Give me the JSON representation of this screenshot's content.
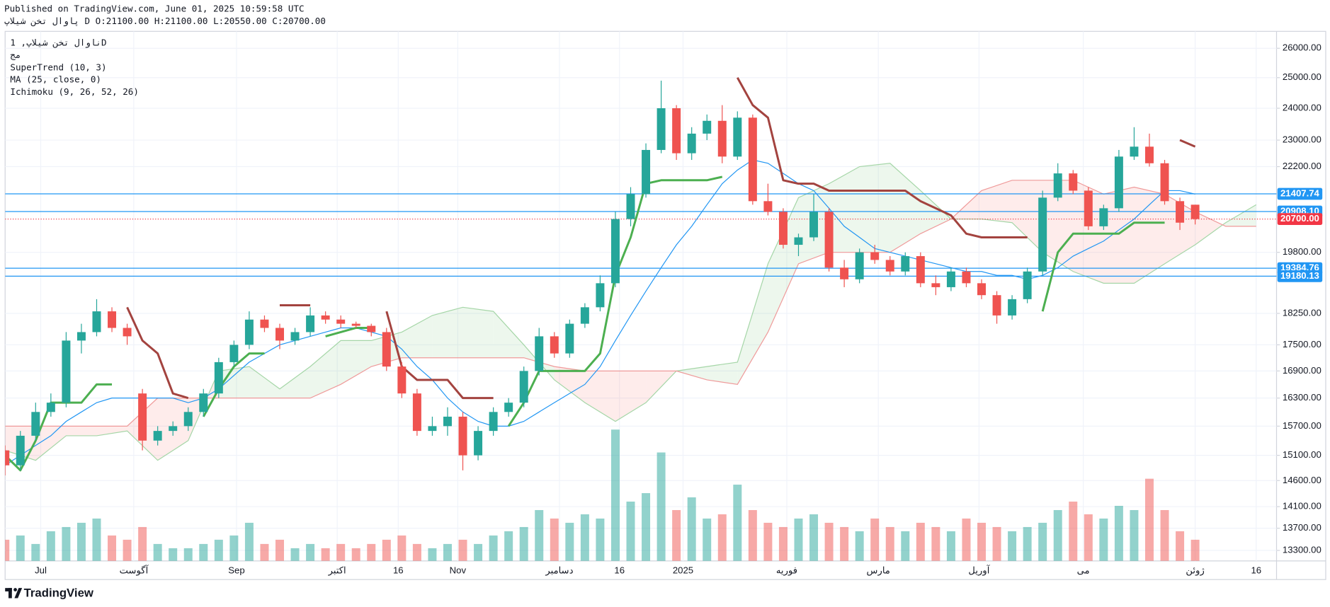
{
  "header": {
    "published": "Published on TradingView.com, June 01, 2025 10:59:58 UTC",
    "symbol": "پاوال تخن شیلاپ",
    "interval": "D",
    "ohlc": [
      "O:21100.00",
      "H:21100.00",
      "L:20550.00",
      "C:20700.00"
    ]
  },
  "footer": {
    "brand": "TradingView"
  },
  "chart_data": {
    "type": "candlestick",
    "legend": [
      "ناوال تخن شیلاپ, 1D",
      "مج",
      "SuperTrend (10, 3)",
      "MA (25, close, 0)",
      "Ichimoku (9, 26, 52, 26)"
    ],
    "log_scale": true,
    "grid": true,
    "xlim": [
      0,
      250
    ],
    "ylim": [
      13115,
      26594
    ],
    "yticks": [
      {
        "value": 26000,
        "label": "26000.00"
      },
      {
        "value": 25000,
        "label": "25000.00"
      },
      {
        "value": 24000,
        "label": "24000.00"
      },
      {
        "value": 23000,
        "label": "23000.00"
      },
      {
        "value": 22200,
        "label": "22200.00"
      },
      {
        "value": 19800,
        "label": "19800.00"
      },
      {
        "value": 18250,
        "label": "18250.00"
      },
      {
        "value": 17500,
        "label": "17500.00"
      },
      {
        "value": 16900,
        "label": "16900.00"
      },
      {
        "value": 16300,
        "label": "16300.00"
      },
      {
        "value": 15700,
        "label": "15700.00"
      },
      {
        "value": 15100,
        "label": "15100.00"
      },
      {
        "value": 14600,
        "label": "14600.00"
      },
      {
        "value": 14100,
        "label": "14100.00"
      },
      {
        "value": 13700,
        "label": "13700.00"
      },
      {
        "value": 13300,
        "label": "13300.00"
      }
    ],
    "xticks": [
      {
        "value": 7,
        "label": "Jul"
      },
      {
        "value": 25.3,
        "label": "آگوست"
      },
      {
        "value": 45.5,
        "label": "Sep"
      },
      {
        "value": 65.3,
        "label": "اکتبر"
      },
      {
        "value": 77.3,
        "label": "16"
      },
      {
        "value": 89,
        "label": "Nov"
      },
      {
        "value": 109,
        "label": "دسامبر"
      },
      {
        "value": 120.8,
        "label": "16"
      },
      {
        "value": 133.3,
        "label": "2025"
      },
      {
        "value": 153.7,
        "label": "فوریه"
      },
      {
        "value": 171.7,
        "label": "مارس"
      },
      {
        "value": 191.5,
        "label": "آوریل"
      },
      {
        "value": 212,
        "label": "می"
      },
      {
        "value": 234,
        "label": "ژوئن"
      },
      {
        "value": 246,
        "label": "16"
      }
    ],
    "up_color": "#26a69a",
    "down_color": "#ef5350",
    "x": [
      0,
      3,
      6,
      9,
      12,
      15,
      18,
      21,
      24,
      27,
      30,
      33,
      36,
      39,
      42,
      45,
      48,
      51,
      54,
      57,
      60,
      63,
      66,
      69,
      72,
      75,
      78,
      81,
      84,
      87,
      90,
      93,
      96,
      99,
      102,
      105,
      108,
      111,
      114,
      117,
      120,
      123,
      126,
      129,
      132,
      135,
      138,
      141,
      144,
      147,
      150,
      153,
      156,
      159,
      162,
      165,
      168,
      171,
      174,
      177,
      180,
      183,
      186,
      189,
      192,
      195,
      198,
      201,
      204,
      207,
      210,
      213,
      216,
      219,
      222,
      225,
      228,
      231,
      234
    ],
    "ohlc": [
      [
        15200,
        15300,
        14700,
        14900
      ],
      [
        14900,
        15600,
        14800,
        15500
      ],
      [
        15500,
        16200,
        15400,
        16000
      ],
      [
        16000,
        16400,
        15900,
        16200
      ],
      [
        16200,
        17800,
        16100,
        17600
      ],
      [
        17600,
        18000,
        17300,
        17800
      ],
      [
        17800,
        18600,
        17700,
        18300
      ],
      [
        18300,
        18400,
        17800,
        17900
      ],
      [
        17900,
        18000,
        17500,
        17700
      ],
      [
        16400,
        16500,
        15200,
        15400
      ],
      [
        15400,
        15700,
        15300,
        15600
      ],
      [
        15600,
        15800,
        15500,
        15700
      ],
      [
        15700,
        16100,
        15600,
        16000
      ],
      [
        16000,
        16500,
        15900,
        16400
      ],
      [
        16400,
        17200,
        16300,
        17100
      ],
      [
        17100,
        17600,
        17000,
        17500
      ],
      [
        17500,
        18300,
        17400,
        18100
      ],
      [
        18100,
        18200,
        17800,
        17900
      ],
      [
        17900,
        18000,
        17400,
        17600
      ],
      [
        17600,
        17900,
        17500,
        17800
      ],
      [
        17800,
        18400,
        17700,
        18200
      ],
      [
        18200,
        18300,
        18000,
        18100
      ],
      [
        18100,
        18200,
        17900,
        18000
      ],
      [
        18000,
        18050,
        17900,
        17950
      ],
      [
        17950,
        18000,
        17700,
        17800
      ],
      [
        17800,
        17900,
        16900,
        17000
      ],
      [
        17000,
        17100,
        16300,
        16400
      ],
      [
        16400,
        16500,
        15500,
        15600
      ],
      [
        15600,
        15900,
        15500,
        15700
      ],
      [
        15700,
        16100,
        15500,
        15900
      ],
      [
        15900,
        16000,
        14800,
        15100
      ],
      [
        15100,
        15700,
        15000,
        15600
      ],
      [
        15600,
        16100,
        15500,
        16000
      ],
      [
        16000,
        16300,
        15900,
        16200
      ],
      [
        16200,
        17000,
        16100,
        16900
      ],
      [
        16900,
        17900,
        16800,
        17700
      ],
      [
        17700,
        17800,
        17200,
        17300
      ],
      [
        17300,
        18100,
        17200,
        18000
      ],
      [
        18000,
        18500,
        17900,
        18400
      ],
      [
        18400,
        19200,
        18300,
        19000
      ],
      [
        19000,
        20900,
        18900,
        20700
      ],
      [
        20700,
        21600,
        20500,
        21400
      ],
      [
        21400,
        22900,
        21300,
        22700
      ],
      [
        22700,
        24900,
        22600,
        24000
      ],
      [
        24000,
        24100,
        22400,
        22600
      ],
      [
        22600,
        23400,
        22400,
        23200
      ],
      [
        23200,
        23800,
        23000,
        23600
      ],
      [
        23600,
        24100,
        22300,
        22500
      ],
      [
        22500,
        23900,
        22400,
        23700
      ],
      [
        23700,
        23800,
        21100,
        21200
      ],
      [
        21200,
        21700,
        20800,
        20900
      ],
      [
        20900,
        21000,
        19900,
        20000
      ],
      [
        20000,
        20300,
        19700,
        20200
      ],
      [
        20200,
        21400,
        20100,
        20900
      ],
      [
        20900,
        21000,
        19300,
        19400
      ],
      [
        19400,
        19600,
        18900,
        19100
      ],
      [
        19100,
        19900,
        19000,
        19800
      ],
      [
        19800,
        20000,
        19500,
        19600
      ],
      [
        19600,
        19700,
        19200,
        19300
      ],
      [
        19300,
        19800,
        19200,
        19700
      ],
      [
        19700,
        19800,
        18900,
        19000
      ],
      [
        19000,
        19200,
        18700,
        18900
      ],
      [
        18900,
        19400,
        18800,
        19300
      ],
      [
        19300,
        19400,
        18900,
        19000
      ],
      [
        19000,
        19100,
        18600,
        18700
      ],
      [
        18700,
        18800,
        18000,
        18200
      ],
      [
        18200,
        18700,
        18100,
        18600
      ],
      [
        18600,
        19400,
        18500,
        19300
      ],
      [
        19300,
        21500,
        19200,
        21300
      ],
      [
        21300,
        22300,
        21200,
        22000
      ],
      [
        22000,
        22100,
        21400,
        21500
      ],
      [
        21500,
        21600,
        20400,
        20500
      ],
      [
        20500,
        21100,
        20400,
        21000
      ],
      [
        21000,
        22700,
        20900,
        22500
      ],
      [
        22500,
        23400,
        22400,
        22800
      ],
      [
        22800,
        23200,
        22200,
        22300
      ],
      [
        22300,
        22400,
        21100,
        21200
      ],
      [
        21200,
        21300,
        20400,
        20600
      ],
      [
        21100,
        21100,
        20550,
        20700
      ]
    ],
    "volume": [
      25,
      30,
      20,
      35,
      40,
      45,
      50,
      30,
      25,
      40,
      20,
      15,
      15,
      20,
      25,
      30,
      45,
      20,
      25,
      15,
      20,
      15,
      20,
      15,
      20,
      25,
      30,
      20,
      15,
      20,
      25,
      20,
      30,
      35,
      40,
      60,
      50,
      45,
      55,
      50,
      155,
      70,
      80,
      128,
      60,
      75,
      50,
      55,
      90,
      60,
      45,
      40,
      50,
      55,
      45,
      40,
      35,
      50,
      40,
      35,
      45,
      40,
      35,
      50,
      45,
      40,
      35,
      40,
      45,
      60,
      70,
      55,
      50,
      65,
      60,
      97,
      60,
      35,
      25
    ],
    "ma": {
      "color": "#2196f3",
      "values": [
        14900,
        15100,
        15300,
        15500,
        15800,
        16000,
        16200,
        16300,
        16300,
        16300,
        16300,
        16300,
        16200,
        16300,
        16500,
        16800,
        17100,
        17300,
        17500,
        17600,
        17700,
        17800,
        17900,
        17900,
        17800,
        17700,
        17400,
        17000,
        16700,
        16300,
        16000,
        15800,
        15700,
        15700,
        15800,
        16000,
        16200,
        16400,
        16600,
        17000,
        17600,
        18200,
        18800,
        19400,
        20000,
        20500,
        21100,
        21700,
        22100,
        22400,
        22300,
        22000,
        21700,
        21500,
        21000,
        20500,
        20200,
        19900,
        19800,
        19700,
        19600,
        19500,
        19400,
        19300,
        19300,
        19200,
        19200,
        19100,
        19200,
        19400,
        19700,
        19900,
        20100,
        20400,
        20700,
        21100,
        21500,
        21500,
        21400
      ]
    },
    "supertrend": {
      "up": {
        "color": "#4caf50",
        "values": [
          15100,
          14800,
          15400,
          16200,
          16200,
          16200,
          16600,
          16600,
          null,
          null,
          null,
          null,
          null,
          15900,
          16500,
          17000,
          17300,
          17300,
          null,
          null,
          null,
          17700,
          17800,
          17900,
          17900,
          null,
          null,
          null,
          null,
          null,
          null,
          null,
          null,
          15700,
          16200,
          16900,
          16900,
          16900,
          16900,
          17300,
          19200,
          20200,
          21700,
          21800,
          21800,
          21800,
          21800,
          21900,
          null,
          null,
          null,
          null,
          null,
          null,
          null,
          null,
          null,
          null,
          null,
          null,
          null,
          null,
          null,
          null,
          null,
          null,
          null,
          null,
          18300,
          19800,
          20300,
          20300,
          20300,
          20300,
          20600,
          20600,
          20600,
          null,
          null
        ]
      },
      "down": {
        "color": "#a3433f",
        "values": [
          null,
          null,
          null,
          null,
          null,
          null,
          null,
          null,
          18400,
          17600,
          17300,
          16400,
          16300,
          null,
          null,
          null,
          null,
          null,
          18450,
          18450,
          18450,
          null,
          null,
          null,
          null,
          18300,
          17000,
          16700,
          16700,
          16700,
          16300,
          16300,
          16300,
          null,
          null,
          null,
          null,
          null,
          null,
          null,
          null,
          null,
          null,
          null,
          null,
          null,
          null,
          null,
          25000,
          24100,
          23700,
          21800,
          21700,
          21700,
          21500,
          21500,
          21500,
          21500,
          21500,
          21500,
          21200,
          21000,
          20800,
          20300,
          20200,
          20200,
          20200,
          20200,
          null,
          null,
          null,
          null,
          null,
          null,
          null,
          null,
          null,
          23000,
          22800
        ]
      }
    },
    "ichimoku": {
      "a_color": "#a5d6a7",
      "b_color": "#ef9a9a",
      "up_fill": "#4caf50",
      "down_fill": "#f44336",
      "x": [
        0,
        6,
        12,
        18,
        24,
        30,
        36,
        42,
        48,
        54,
        60,
        66,
        72,
        78,
        84,
        90,
        96,
        102,
        108,
        114,
        120,
        126,
        132,
        138,
        144,
        150,
        156,
        162,
        168,
        174,
        180,
        186,
        192,
        198,
        204,
        210,
        216,
        222,
        228,
        234,
        240,
        246
      ],
      "span_a": [
        15200,
        15000,
        15500,
        15500,
        15600,
        15000,
        15400,
        16900,
        17000,
        16500,
        17000,
        17600,
        17600,
        17800,
        18200,
        18400,
        18300,
        17500,
        16700,
        16200,
        15800,
        16200,
        16900,
        17000,
        17100,
        19500,
        21300,
        21700,
        22200,
        22300,
        21500,
        20700,
        20700,
        20600,
        19800,
        19300,
        19000,
        19000,
        19500,
        20000,
        20600,
        21100
      ],
      "span_b": [
        15700,
        15700,
        15700,
        15700,
        15700,
        16300,
        16300,
        16300,
        16300,
        16300,
        16300,
        16600,
        17000,
        17200,
        17200,
        17200,
        17200,
        17200,
        17000,
        16900,
        16900,
        16900,
        16900,
        16700,
        16600,
        17800,
        19500,
        19800,
        19800,
        19800,
        20300,
        20700,
        21500,
        21800,
        21800,
        21800,
        21400,
        21600,
        21400,
        20900,
        20500,
        20500
      ]
    },
    "price_lines": [
      {
        "value": 21407.74,
        "label": "21407.74",
        "color": "#2196f3",
        "dashed": false
      },
      {
        "value": 20908.1,
        "label": "20908.10",
        "color": "#2196f3",
        "dashed": false
      },
      {
        "value": 20700,
        "label": "20700.00",
        "color": "#f23645",
        "dashed": true
      },
      {
        "value": 19384.76,
        "label": "19384.76",
        "color": "#2196f3",
        "dashed": false
      },
      {
        "value": 19180.13,
        "label": "19180.13",
        "color": "#2196f3",
        "dashed": false
      }
    ]
  }
}
